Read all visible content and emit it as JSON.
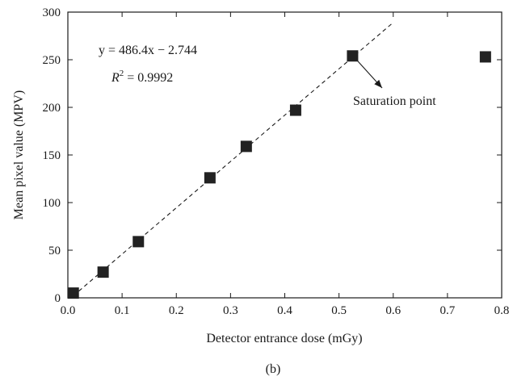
{
  "chart_data": {
    "type": "scatter",
    "xlabel": "Detector entrance dose (mGy)",
    "ylabel": "Mean pixel value (MPV)",
    "xlim": [
      0.0,
      0.8
    ],
    "ylim": [
      0,
      300
    ],
    "xticks": [
      "0.0",
      "0.1",
      "0.2",
      "0.3",
      "0.4",
      "0.5",
      "0.6",
      "0.7",
      "0.8"
    ],
    "yticks": [
      "0",
      "50",
      "100",
      "150",
      "200",
      "250",
      "300"
    ],
    "grid": false,
    "series": [
      {
        "marker": "square",
        "color": "#222222",
        "points": [
          {
            "x": 0.01,
            "y": 5
          },
          {
            "x": 0.065,
            "y": 27
          },
          {
            "x": 0.13,
            "y": 59
          },
          {
            "x": 0.262,
            "y": 126
          },
          {
            "x": 0.329,
            "y": 159
          },
          {
            "x": 0.42,
            "y": 197
          },
          {
            "x": 0.525,
            "y": 254
          },
          {
            "x": 0.77,
            "y": 253
          }
        ]
      }
    ],
    "fit_line": {
      "style": "dashed",
      "slope": 486.4,
      "intercept": -2.744,
      "x_range": [
        0.01,
        0.6
      ]
    },
    "equation": {
      "line1": "y = 486.4x − 2.744",
      "line2_prefix": "R",
      "line2_exp": "2",
      "line2_suffix": " = 0.9992"
    },
    "annotation": {
      "text": "Saturation point",
      "target": {
        "x": 0.525,
        "y": 254
      }
    },
    "panel_label": "(b)"
  }
}
